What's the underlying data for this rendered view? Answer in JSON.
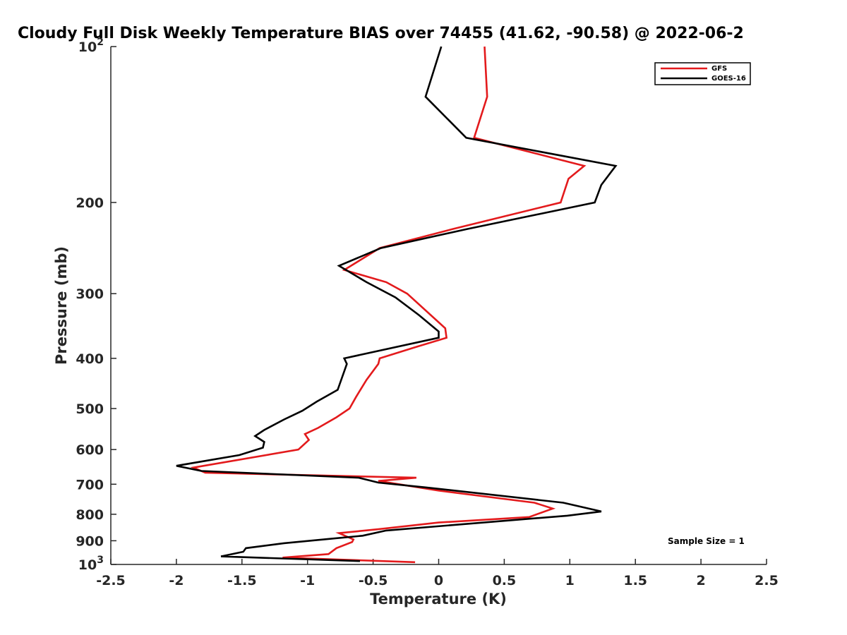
{
  "chart_data": {
    "type": "line",
    "title": "Cloudy Full Disk Weekly Temperature BIAS over 74455 (41.62, -90.58) @ 2022-06-2",
    "xlabel": "Temperature (K)",
    "ylabel": "Pressure (mb)",
    "xlim": [
      -2.5,
      2.5
    ],
    "ylim": [
      100,
      1000
    ],
    "y_scale": "log",
    "y_reversed": true,
    "grid": false,
    "legend_position": "top-right",
    "x_ticks": [
      "-2.5",
      "-2",
      "-1.5",
      "-1",
      "-0.5",
      "0",
      "0.5",
      "1",
      "1.5",
      "2",
      "2.5"
    ],
    "y_ticks": [
      {
        "value": 100,
        "base": "10",
        "exp": "2"
      },
      {
        "value": 200,
        "label": "200"
      },
      {
        "value": 300,
        "label": "300"
      },
      {
        "value": 400,
        "label": "400"
      },
      {
        "value": 500,
        "label": "500"
      },
      {
        "value": 600,
        "label": "600"
      },
      {
        "value": 700,
        "label": "700"
      },
      {
        "value": 800,
        "label": "800"
      },
      {
        "value": 900,
        "label": "900"
      },
      {
        "value": 1000,
        "base": "10",
        "exp": "3"
      }
    ],
    "annotation": "Sample Size = 1",
    "series": [
      {
        "name": "GFS",
        "color": "#e31a1c",
        "points": [
          [
            0.35,
            100
          ],
          [
            0.37,
            125
          ],
          [
            0.27,
            150
          ],
          [
            1.11,
            170
          ],
          [
            0.99,
            180
          ],
          [
            0.93,
            200
          ],
          [
            0.11,
            225
          ],
          [
            -0.45,
            245
          ],
          [
            -0.72,
            270
          ],
          [
            -0.4,
            285
          ],
          [
            -0.24,
            300
          ],
          [
            0.05,
            350
          ],
          [
            0.06,
            365
          ],
          [
            -0.17,
            380
          ],
          [
            -0.45,
            400
          ],
          [
            -0.46,
            410
          ],
          [
            -0.55,
            440
          ],
          [
            -0.63,
            475
          ],
          [
            -0.68,
            500
          ],
          [
            -0.78,
            520
          ],
          [
            -0.92,
            545
          ],
          [
            -1.02,
            560
          ],
          [
            -0.99,
            575
          ],
          [
            -1.07,
            600
          ],
          [
            -1.87,
            650
          ],
          [
            -1.78,
            665
          ],
          [
            -0.17,
            680
          ],
          [
            -0.46,
            690
          ],
          [
            0.0,
            720
          ],
          [
            0.73,
            760
          ],
          [
            0.87,
            780
          ],
          [
            0.69,
            810
          ],
          [
            0.0,
            830
          ],
          [
            -0.46,
            855
          ],
          [
            -0.76,
            870
          ],
          [
            -0.65,
            895
          ],
          [
            -0.66,
            905
          ],
          [
            -0.78,
            930
          ],
          [
            -0.84,
            955
          ],
          [
            -1.19,
            970
          ],
          [
            -0.18,
            990
          ]
        ]
      },
      {
        "name": "GOES-16",
        "color": "#000000",
        "points": [
          [
            0.02,
            100
          ],
          [
            -0.1,
            125
          ],
          [
            0.21,
            150
          ],
          [
            1.35,
            170
          ],
          [
            1.24,
            185
          ],
          [
            1.19,
            200
          ],
          [
            0.22,
            225
          ],
          [
            -0.44,
            245
          ],
          [
            -0.76,
            265
          ],
          [
            -0.55,
            285
          ],
          [
            -0.33,
            305
          ],
          [
            -0.15,
            330
          ],
          [
            0.0,
            355
          ],
          [
            0.0,
            365
          ],
          [
            -0.72,
            400
          ],
          [
            -0.7,
            410
          ],
          [
            -0.77,
            460
          ],
          [
            -0.93,
            485
          ],
          [
            -1.04,
            505
          ],
          [
            -1.18,
            525
          ],
          [
            -1.33,
            550
          ],
          [
            -1.4,
            565
          ],
          [
            -1.33,
            580
          ],
          [
            -1.34,
            595
          ],
          [
            -1.52,
            615
          ],
          [
            -2.0,
            645
          ],
          [
            -1.81,
            660
          ],
          [
            -0.61,
            680
          ],
          [
            -0.46,
            695
          ],
          [
            -0.1,
            710
          ],
          [
            0.95,
            760
          ],
          [
            1.24,
            790
          ],
          [
            0.98,
            805
          ],
          [
            -0.4,
            860
          ],
          [
            -0.58,
            880
          ],
          [
            -1.18,
            910
          ],
          [
            -1.47,
            930
          ],
          [
            -1.49,
            945
          ],
          [
            -1.66,
            965
          ],
          [
            -0.6,
            985
          ]
        ]
      }
    ]
  }
}
